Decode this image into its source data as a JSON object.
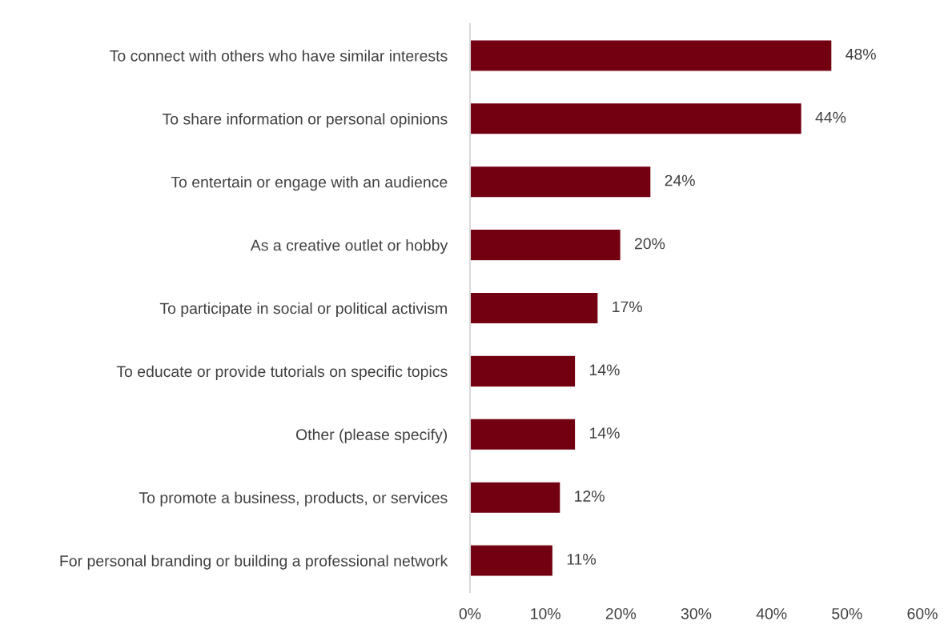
{
  "chart_data": {
    "type": "bar",
    "orientation": "horizontal",
    "categories": [
      "To connect with others who have similar interests",
      "To share information or personal opinions",
      "To entertain or engage with an audience",
      "As a creative outlet or hobby",
      "To participate in social or political activism",
      "To educate or provide tutorials on specific topics",
      "Other (please specify)",
      "To promote a business, products, or services",
      "For personal branding or building a professional network"
    ],
    "values": [
      48,
      44,
      24,
      20,
      17,
      14,
      14,
      12,
      11
    ],
    "value_labels": [
      "48%",
      "44%",
      "24%",
      "20%",
      "17%",
      "14%",
      "14%",
      "12%",
      "11%"
    ],
    "color": "#720010",
    "xlim": [
      0,
      60
    ],
    "xticks": [
      {
        "value": 0,
        "label": "0%"
      },
      {
        "value": 10,
        "label": "10%"
      },
      {
        "value": 20,
        "label": "20%"
      },
      {
        "value": 30,
        "label": "30%"
      },
      {
        "value": 40,
        "label": "40%"
      },
      {
        "value": 50,
        "label": "50%"
      },
      {
        "value": 60,
        "label": "60%"
      }
    ],
    "grid": false,
    "legend": false
  }
}
